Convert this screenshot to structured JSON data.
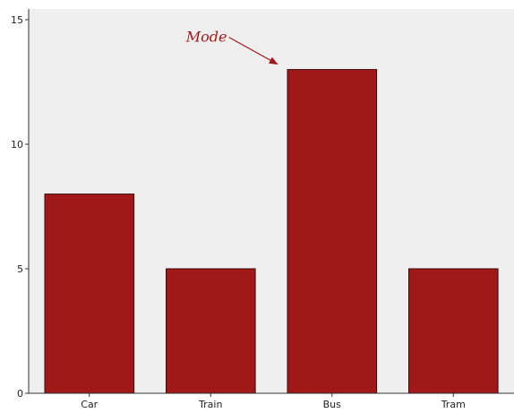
{
  "chart_data": {
    "type": "bar",
    "categories": [
      "Car",
      "Train",
      "Bus",
      "Tram"
    ],
    "values": [
      8,
      5,
      13,
      5
    ],
    "title": "",
    "xlabel": "",
    "ylabel": "",
    "ylim": [
      0,
      15
    ],
    "yticks": [
      0,
      5,
      10,
      15
    ],
    "grid": false,
    "annotation": {
      "text": "Mode",
      "target_category": "Bus"
    },
    "colors": {
      "bar": "#a01818",
      "bar_border": "#3a0a0a",
      "plot_background": "#efefef",
      "axis": "#333333"
    }
  }
}
